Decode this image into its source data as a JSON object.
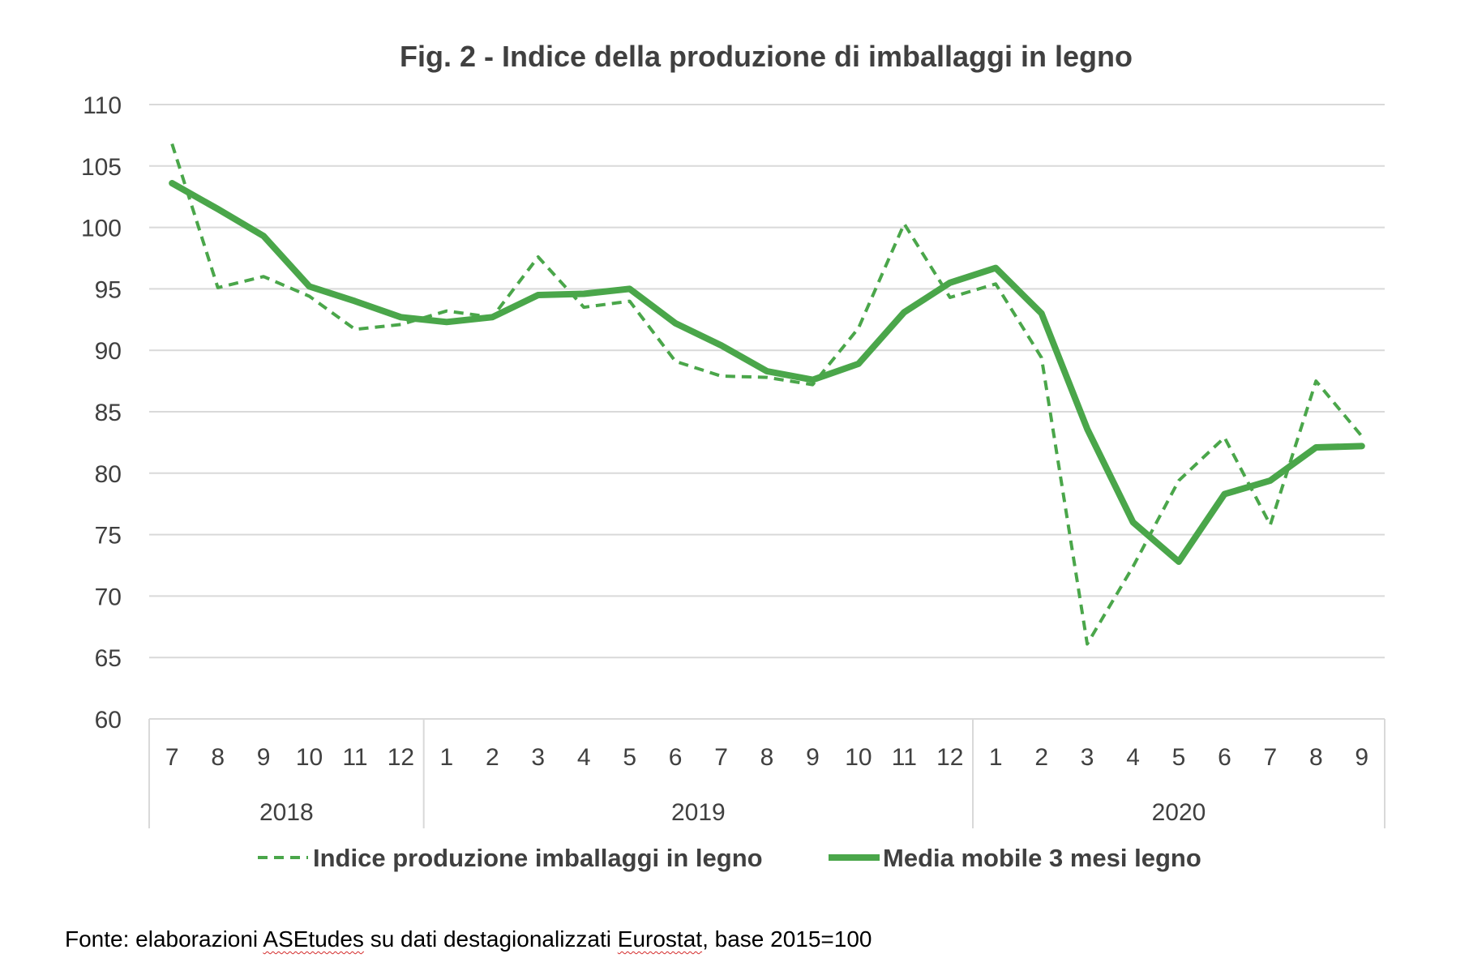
{
  "chart_data": {
    "type": "line",
    "title": "Fig. 2 - Indice della produzione di imballaggi in legno",
    "xlabel": "",
    "ylabel": "",
    "ylim": [
      60,
      110
    ],
    "y_ticks": [
      110,
      105,
      100,
      95,
      90,
      85,
      80,
      75,
      70,
      65,
      60
    ],
    "x_ticks": [
      "7",
      "8",
      "9",
      "10",
      "11",
      "12",
      "1",
      "2",
      "3",
      "4",
      "5",
      "6",
      "7",
      "8",
      "9",
      "10",
      "11",
      "12",
      "1",
      "2",
      "3",
      "4",
      "5",
      "6",
      "7",
      "8",
      "9"
    ],
    "years": [
      {
        "label": "2018",
        "start": 0,
        "end": 5
      },
      {
        "label": "2019",
        "start": 6,
        "end": 17
      },
      {
        "label": "2020",
        "start": 18,
        "end": 26
      }
    ],
    "grid": true,
    "legend_position": "bottom",
    "series": [
      {
        "name": "Indice produzione imballaggi in legno",
        "style": "dashed",
        "color": "#4aa64a",
        "values": [
          106.8,
          95.1,
          96.0,
          94.4,
          91.7,
          92.1,
          93.2,
          92.7,
          97.6,
          93.5,
          94.0,
          89.1,
          87.9,
          87.8,
          87.2,
          91.8,
          100.3,
          94.3,
          95.4,
          89.4,
          66.1,
          72.4,
          79.4,
          82.9,
          75.8,
          87.5,
          83.0
        ]
      },
      {
        "name": "Media mobile 3 mesi  legno",
        "style": "solid",
        "color": "#4aa64a",
        "values": [
          103.6,
          101.5,
          99.3,
          95.2,
          94.0,
          92.7,
          92.3,
          92.7,
          94.5,
          94.6,
          95.0,
          92.2,
          90.4,
          88.3,
          87.6,
          88.9,
          93.1,
          95.5,
          96.7,
          93.0,
          83.6,
          76.0,
          72.8,
          78.3,
          79.4,
          82.1,
          82.2
        ]
      }
    ],
    "source": {
      "prefix": "Fonte: elaborazioni ",
      "flagged": "ASEtudes",
      "middle": " su dati destagionalizzati ",
      "flagged2": "Eurostat",
      "suffix": ", base 2015=100"
    }
  }
}
